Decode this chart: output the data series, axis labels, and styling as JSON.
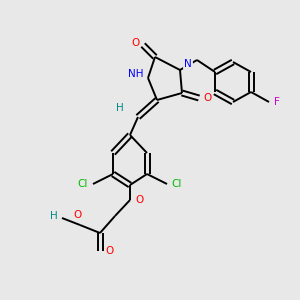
{
  "bg_color": "#e8e8e8",
  "fig_size": [
    3.0,
    3.0
  ],
  "dpi": 100,
  "label_colors": {
    "N": "#0000ff",
    "O": "#ff0000",
    "Cl": "#00bb00",
    "F": "#cc00cc",
    "H": "#008888",
    "C": "#000000"
  }
}
